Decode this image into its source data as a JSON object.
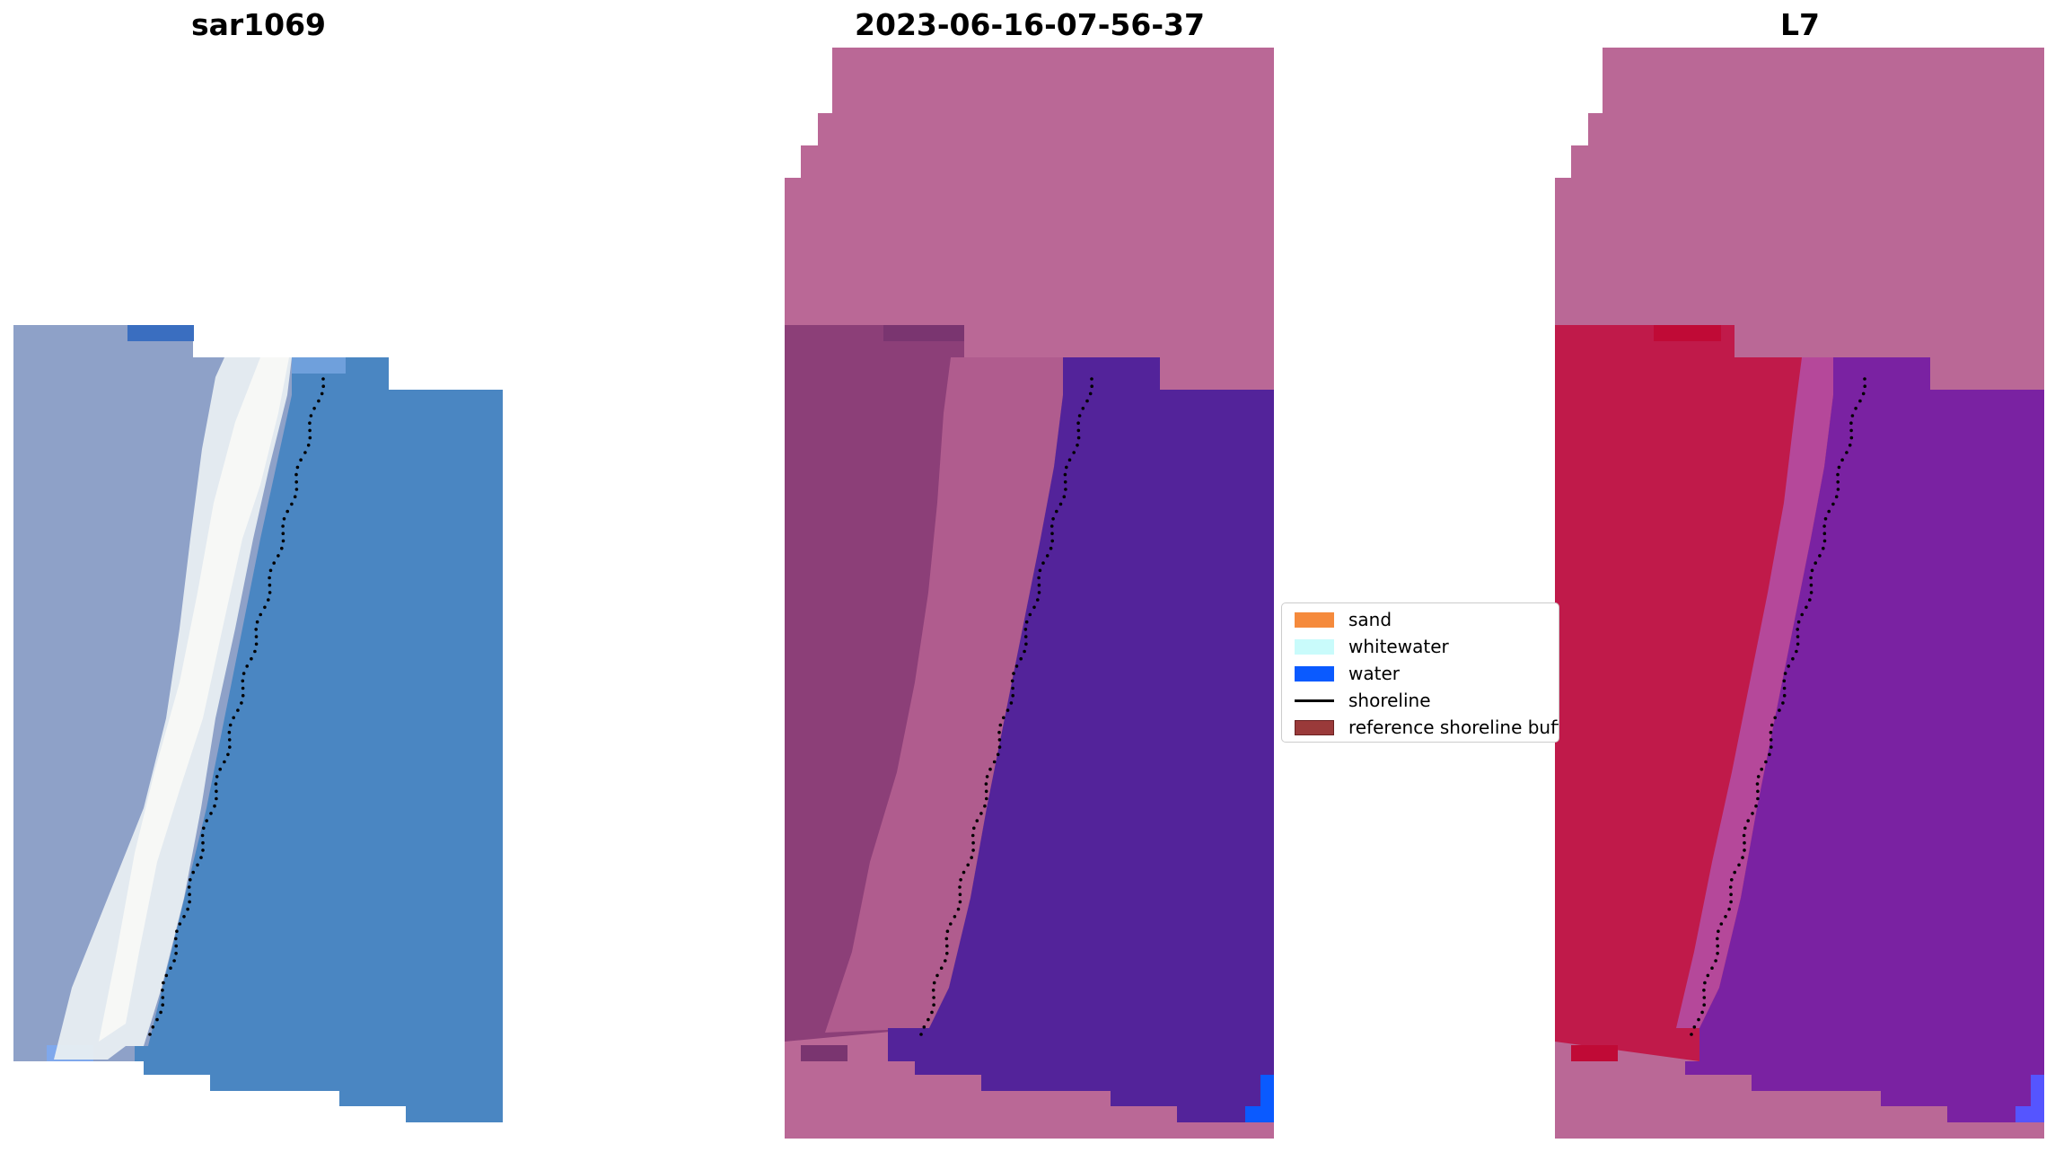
{
  "panels": {
    "left": {
      "title": "sar1069"
    },
    "middle": {
      "title": "2023-06-16-07-56-37"
    },
    "right": {
      "title": "L7"
    }
  },
  "legend": {
    "placement": "center",
    "items": [
      {
        "label": "sand",
        "color": "#f58a3c",
        "kind": "patch"
      },
      {
        "label": "whitewater",
        "color": "#c9fbfb",
        "kind": "patch"
      },
      {
        "label": "water",
        "color": "#0a5aff",
        "kind": "patch"
      },
      {
        "label": "shoreline",
        "color": "#000000",
        "kind": "line"
      },
      {
        "label": "reference shoreline buffer",
        "color": "#9a3a3a",
        "kind": "patch"
      }
    ]
  },
  "colors": {
    "background_mask": "#ba6896",
    "sar_land": "#8ea1c8",
    "sar_bright": "#e8eef2",
    "sar_water": "#4a86c2",
    "class_land": "#8c3f78",
    "class_land_light": "#b05c8e",
    "class_water": "#53239a",
    "class_water_edge": "#0a5aff",
    "l7_land": "#c01a4a",
    "l7_transition": "#b5489a",
    "l7_water": "#7a22a2",
    "shoreline": "#000000"
  }
}
